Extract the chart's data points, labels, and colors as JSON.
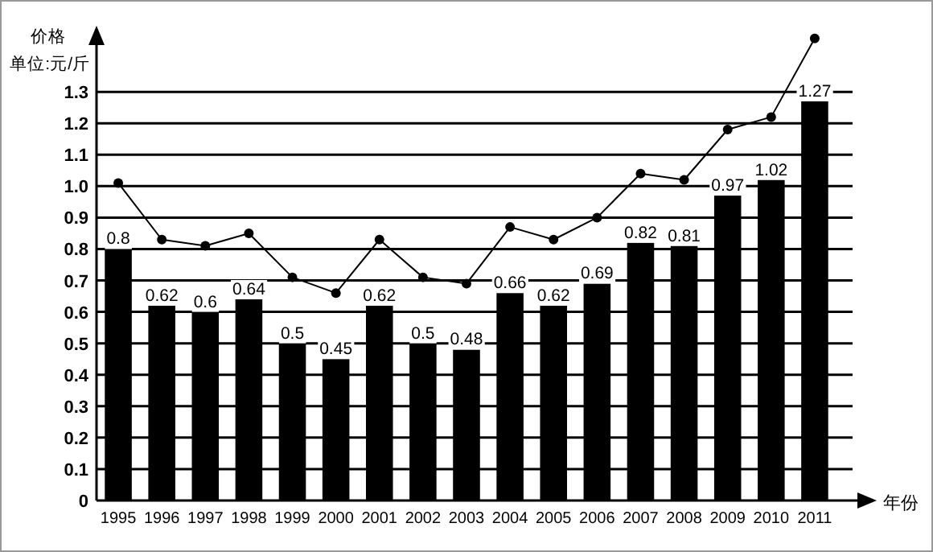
{
  "chart_data": {
    "type": "bar",
    "ylabel": "价格",
    "xlabel": "年份",
    "annotations": [
      "单位:元/斤"
    ],
    "categories": [
      "1995",
      "1996",
      "1997",
      "1998",
      "1999",
      "2000",
      "2001",
      "2002",
      "2003",
      "2004",
      "2005",
      "2006",
      "2007",
      "2008",
      "2009",
      "2010",
      "2011"
    ],
    "series": [
      {
        "color": "#000000",
        "values": [
          0.8,
          0.62,
          0.6,
          0.64,
          0.5,
          0.45,
          0.62,
          0.5,
          0.48,
          0.66,
          0.62,
          0.69,
          0.82,
          0.81,
          0.97,
          1.02,
          1.27
        ],
        "value_labels": [
          "0.8",
          "0.62",
          "0.6",
          "0.64",
          "0.5",
          "0.45",
          "0.62",
          "0.5",
          "0.48",
          "0.66",
          "0.62",
          "0.69",
          "0.82",
          "0.81",
          "0.97",
          "1.02",
          "1.27"
        ]
      },
      {
        "type": "line",
        "color": "#000000",
        "marker": "circle",
        "values": [
          1.01,
          0.83,
          0.81,
          0.85,
          0.71,
          0.66,
          0.83,
          0.71,
          0.69,
          0.87,
          0.83,
          0.9,
          1.04,
          1.02,
          1.18,
          1.22,
          1.47
        ]
      }
    ],
    "ylim": [
      0,
      1.5
    ],
    "yticks": [
      0,
      0.1,
      0.2,
      0.3,
      0.4,
      0.5,
      0.6,
      0.7,
      0.8,
      0.9,
      {
        "value": 1.0,
        "label": "1.0"
      },
      1.1,
      1.2,
      1.3
    ],
    "grid": "y"
  }
}
